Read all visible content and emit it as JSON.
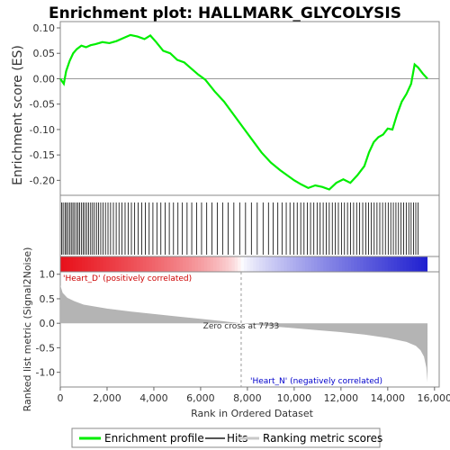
{
  "chart_data": {
    "type": "line",
    "title": "Enrichment plot: HALLMARK_GLYCOLYSIS",
    "es_panel": {
      "ylabel": "Enrichment score (ES)",
      "ylim": [
        -0.235,
        0.1
      ],
      "yticks": [
        0.1,
        0.05,
        0.0,
        -0.05,
        -0.1,
        -0.15,
        -0.2
      ],
      "ytick_labels": [
        "0.10",
        "0.05",
        "0.00",
        "-0.05",
        "-0.10",
        "-0.15",
        "-0.20"
      ],
      "series": [
        {
          "name": "Enrichment profile",
          "color": "#00ee00",
          "x": [
            0,
            150,
            250,
            400,
            550,
            700,
            900,
            1100,
            1300,
            1500,
            1800,
            2100,
            2400,
            2700,
            3000,
            3300,
            3600,
            3850,
            4100,
            4400,
            4700,
            5000,
            5300,
            5600,
            5900,
            6200,
            6600,
            7000,
            7400,
            7800,
            8200,
            8600,
            9000,
            9400,
            9700,
            10000,
            10300,
            10600,
            10900,
            11200,
            11500,
            11800,
            12100,
            12400,
            12700,
            13000,
            13200,
            13400,
            13600,
            13800,
            14000,
            14200,
            14400,
            14600,
            14800,
            15000,
            15150,
            15300,
            15500,
            15700
          ],
          "y": [
            0.0,
            -0.01,
            0.015,
            0.035,
            0.05,
            0.058,
            0.065,
            0.062,
            0.066,
            0.068,
            0.072,
            0.07,
            0.074,
            0.08,
            0.086,
            0.083,
            0.078,
            0.085,
            0.072,
            0.055,
            0.05,
            0.037,
            0.032,
            0.02,
            0.008,
            -0.002,
            -0.025,
            -0.045,
            -0.07,
            -0.095,
            -0.12,
            -0.145,
            -0.165,
            -0.18,
            -0.19,
            -0.2,
            -0.208,
            -0.215,
            -0.21,
            -0.213,
            -0.218,
            -0.205,
            -0.198,
            -0.205,
            -0.19,
            -0.172,
            -0.145,
            -0.125,
            -0.115,
            -0.11,
            -0.098,
            -0.1,
            -0.07,
            -0.045,
            -0.03,
            -0.01,
            0.028,
            0.022,
            0.01,
            0.0
          ]
        }
      ]
    },
    "hits": [
      60,
      120,
      200,
      260,
      330,
      400,
      470,
      540,
      610,
      690,
      760,
      830,
      910,
      980,
      1050,
      1130,
      1210,
      1300,
      1380,
      1460,
      1550,
      1640,
      1730,
      1830,
      1930,
      2040,
      2150,
      2270,
      2390,
      2510,
      2640,
      2770,
      2900,
      3040,
      3180,
      3330,
      3480,
      3640,
      3800,
      3960,
      4130,
      4300,
      4480,
      4660,
      4840,
      5030,
      5220,
      5420,
      5620,
      5830,
      6040,
      6260,
      6480,
      6710,
      6940,
      7180,
      7420,
      7670,
      7920,
      8170,
      8420,
      8670,
      8900,
      9100,
      9300,
      9480,
      9660,
      9820,
      9980,
      10130,
      10280,
      10420,
      10560,
      10700,
      10840,
      10980,
      11110,
      11240,
      11370,
      11500,
      11630,
      11760,
      11890,
      12020,
      12150,
      12280,
      12410,
      12540,
      12670,
      12800,
      12930,
      13060,
      13180,
      13300,
      13420,
      13540,
      13660,
      13780,
      13900,
      14020,
      14130,
      14240,
      14350,
      14460,
      14570,
      14680,
      14790,
      14900,
      15000,
      15100,
      15200,
      15300
    ],
    "heatmap_label_pos": "'Heart_D' (positively correlated)",
    "heatmap_label_neg": "'Heart_N' (negatively correlated)",
    "rank_panel": {
      "ylabel": "Ranked list metric (Signal2Noise)",
      "xlabel": "Rank in Ordered Dataset",
      "ylim": [
        -1.3,
        1.05
      ],
      "yticks": [
        1.0,
        0.5,
        0.0,
        -0.5,
        -1.0
      ],
      "ytick_labels": [
        "1.0",
        "0.5",
        "0.0",
        "-0.5",
        "-1.0"
      ],
      "xlim": [
        0,
        16200
      ],
      "xticks": [
        0,
        2000,
        4000,
        6000,
        8000,
        10000,
        12000,
        14000,
        16000
      ],
      "xtick_labels": [
        "0",
        "2,000",
        "4,000",
        "6,000",
        "8,000",
        "10,000",
        "12,000",
        "14,000",
        "16,000"
      ],
      "metric_x": [
        0,
        100,
        300,
        600,
        1000,
        2000,
        3000,
        4000,
        5000,
        6000,
        7000,
        7733,
        9000,
        10000,
        11000,
        12000,
        13000,
        14000,
        14800,
        15200,
        15400,
        15550,
        15650,
        15700
      ],
      "metric_y": [
        0.78,
        0.62,
        0.52,
        0.45,
        0.38,
        0.3,
        0.24,
        0.19,
        0.14,
        0.09,
        0.04,
        0.0,
        -0.06,
        -0.1,
        -0.14,
        -0.18,
        -0.23,
        -0.3,
        -0.38,
        -0.46,
        -0.55,
        -0.68,
        -0.9,
        -1.2
      ],
      "zero_cross_label": "Zero cross at 7733",
      "zero_cross": 7733
    },
    "legend": {
      "placement": "bottom",
      "items": [
        {
          "label": "Enrichment profile",
          "color": "#00ee00"
        },
        {
          "label": "Hits",
          "color": "#555555"
        },
        {
          "label": "Ranking metric scores",
          "color": "#c8c8c8"
        }
      ]
    },
    "colors": {
      "positive": "#e8101a",
      "negative": "#2020d0",
      "metric_fill": "#b4b4b4"
    }
  }
}
